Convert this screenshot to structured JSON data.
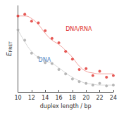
{
  "chart_data": {
    "type": "scatter",
    "xlabel": "duplex length / bp",
    "ylabel": {
      "text": "E",
      "subscript": "FRET"
    },
    "x": [
      10,
      11,
      12,
      13,
      14,
      15,
      16,
      17,
      18,
      19,
      20,
      21,
      22,
      23,
      24
    ],
    "series": [
      {
        "name": "DNA/RNA",
        "color": "#e0302a",
        "marker": "circle",
        "values": [
          0.88,
          0.9,
          0.82,
          0.8,
          0.71,
          0.62,
          0.57,
          0.47,
          0.38,
          0.26,
          0.27,
          0.19,
          0.24,
          0.17,
          0.19
        ],
        "fit": [
          0.88,
          0.88,
          0.85,
          0.78,
          0.68,
          0.6,
          0.55,
          0.48,
          0.4,
          0.3,
          0.24,
          0.22,
          0.21,
          0.21,
          0.21
        ]
      },
      {
        "name": "DNA",
        "color": "#a8a8a8",
        "marker": "circle",
        "values": [
          0.72,
          0.6,
          0.45,
          0.4,
          0.34,
          0.33,
          0.26,
          0.21,
          0.15,
          0.12,
          0.1,
          0.08,
          0.1,
          0.07,
          0.08
        ],
        "fit": [
          0.72,
          0.58,
          0.47,
          0.4,
          0.36,
          0.33,
          0.28,
          0.22,
          0.17,
          0.13,
          0.1,
          0.09,
          0.08,
          0.08,
          0.08
        ]
      }
    ],
    "xlim": [
      10,
      24
    ],
    "xticks": [
      10,
      12,
      14,
      16,
      18,
      20,
      22,
      24
    ],
    "ylim": [
      0,
      1
    ],
    "tick_labels": "x",
    "grid": false
  }
}
